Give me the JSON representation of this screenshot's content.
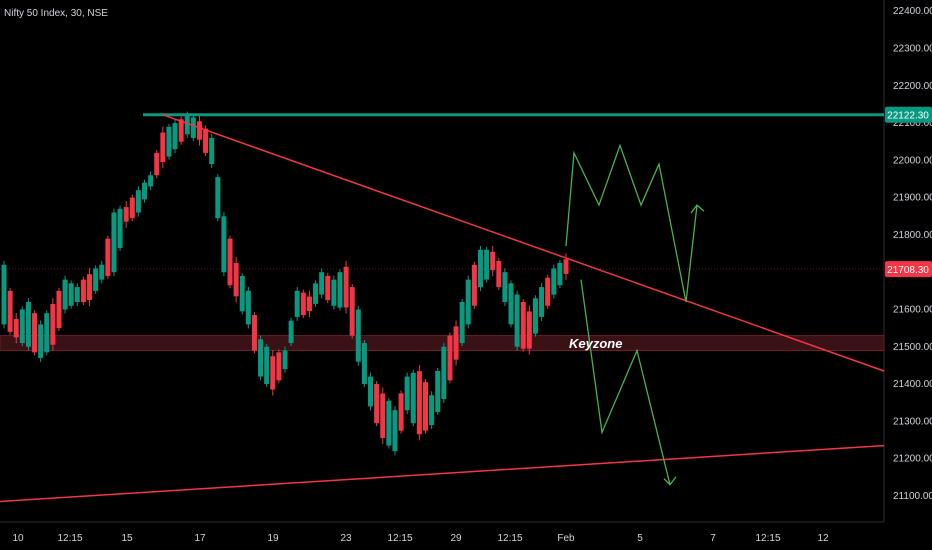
{
  "chart_data": {
    "type": "candlestick",
    "title": "Nifty 50 Index, 30, NSE",
    "y_axis": {
      "ticks": [
        "22400.00",
        "22300.00",
        "22200.00",
        "22100.00",
        "22000.00",
        "21900.00",
        "21800.00",
        "21600.00",
        "21500.00",
        "21400.00",
        "21300.00",
        "21200.00",
        "21100.00"
      ],
      "tick_values": [
        22400,
        22300,
        22200,
        22100,
        22000,
        21900,
        21800,
        21600,
        21500,
        21400,
        21300,
        21200,
        21100
      ],
      "ylim": [
        21030,
        22430
      ]
    },
    "x_axis": {
      "ticks": [
        "10",
        "12:15",
        "15",
        "17",
        "19",
        "23",
        "12:15",
        "29",
        "12:15",
        "Feb",
        "5",
        "7",
        "12:15",
        "12"
      ]
    },
    "price_labels": [
      {
        "text": "22122.30",
        "value": 22122.3,
        "color": "#089981"
      },
      {
        "text": "21708.30",
        "value": 21708.3,
        "color": "#f23645"
      }
    ],
    "annotations": {
      "keyzone_label": "Keyzone",
      "keyzone_range": [
        21490,
        21530
      ],
      "resistance_level": 22122.3,
      "current_price": 21708.3
    },
    "candles_sampled": [
      [
        21720,
        21560
      ],
      [
        21580,
        21520
      ],
      [
        21620,
        21500
      ],
      [
        21560,
        21470
      ],
      [
        21620,
        21500
      ],
      [
        21680,
        21600
      ],
      [
        21660,
        21620
      ],
      [
        21700,
        21620
      ],
      [
        21720,
        21680
      ],
      [
        21860,
        21700
      ],
      [
        21880,
        21830
      ],
      [
        21920,
        21860
      ],
      [
        21960,
        21930
      ],
      [
        22080,
        21990
      ],
      [
        22100,
        22030
      ],
      [
        22120,
        22070
      ],
      [
        22110,
        22050
      ],
      [
        22060,
        21990
      ],
      [
        21850,
        21700
      ],
      [
        21730,
        21630
      ],
      [
        21650,
        21560
      ],
      [
        21520,
        21420
      ],
      [
        21480,
        21380
      ],
      [
        21490,
        21440
      ],
      [
        21650,
        21580
      ],
      [
        21640,
        21590
      ],
      [
        21700,
        21640
      ],
      [
        21680,
        21610
      ],
      [
        21720,
        21600
      ],
      [
        21600,
        21460
      ],
      [
        21420,
        21340
      ],
      [
        21380,
        21250
      ],
      [
        21330,
        21220
      ],
      [
        21420,
        21330
      ],
      [
        21440,
        21260
      ],
      [
        21370,
        21290
      ],
      [
        21500,
        21360
      ],
      [
        21560,
        21460
      ],
      [
        21680,
        21560
      ],
      [
        21760,
        21660
      ],
      [
        21760,
        21700
      ],
      [
        21700,
        21620
      ],
      [
        21640,
        21500
      ],
      [
        21600,
        21490
      ],
      [
        21660,
        21580
      ],
      [
        21710,
        21640
      ],
      [
        21740,
        21690
      ]
    ]
  },
  "colors": {
    "background": "#000000",
    "up": "#089981",
    "down": "#f23645",
    "trendline": "#f23645",
    "resistance": "#089981",
    "projection": "#4caf50"
  }
}
